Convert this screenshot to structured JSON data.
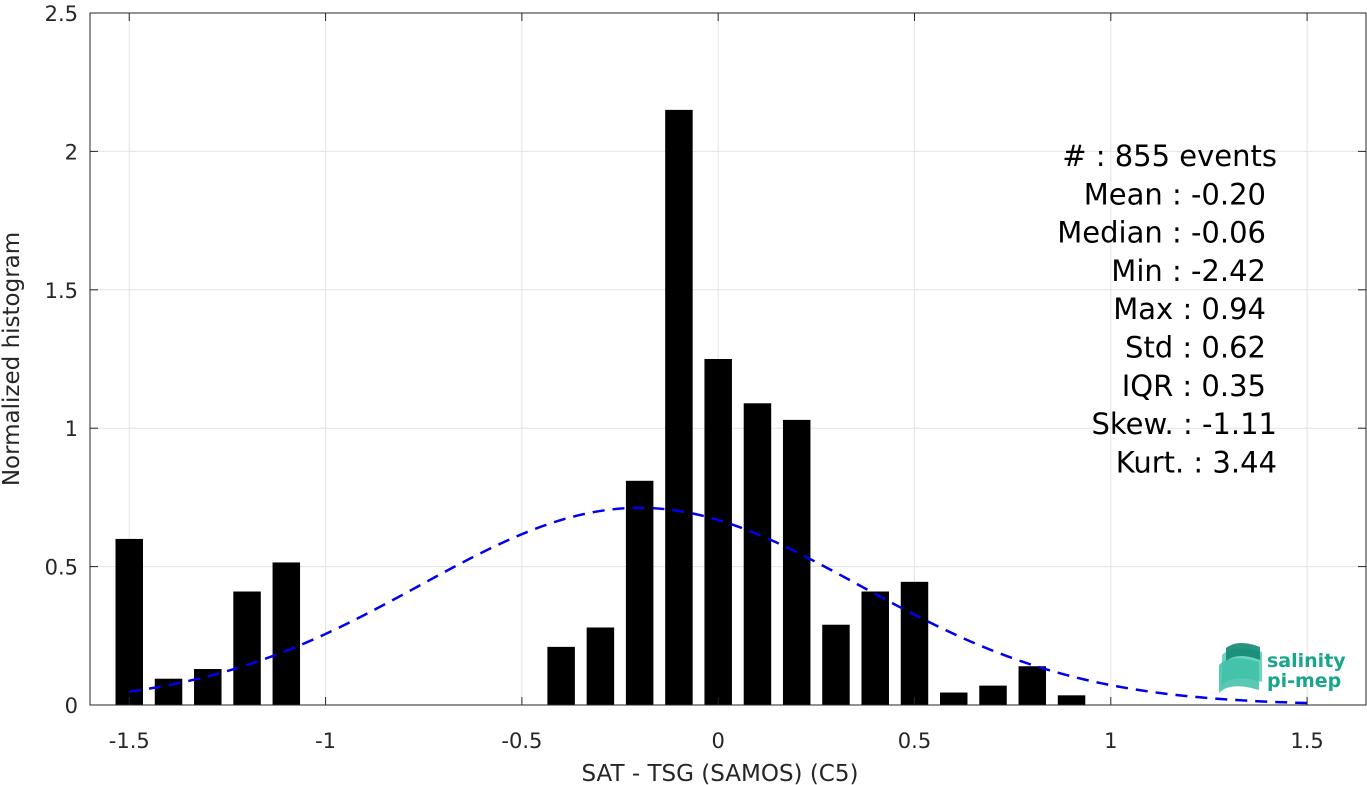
{
  "chart_data": {
    "type": "bar",
    "xlabel": "SAT - TSG (SAMOS) (C5)",
    "ylabel": "Normalized histogram",
    "xlim": [
      -1.6,
      1.65
    ],
    "ylim": [
      0,
      2.5
    ],
    "xticks": [
      -1.5,
      -1,
      -0.5,
      0,
      0.5,
      1,
      1.5
    ],
    "xtick_labels": [
      "-1.5",
      "-1",
      "-0.5",
      "0",
      "0.5",
      "1",
      "1.5"
    ],
    "yticks": [
      0,
      0.5,
      1,
      1.5,
      2,
      2.5
    ],
    "ytick_labels": [
      "0",
      "0.5",
      "1",
      "1.5",
      "2",
      "2.5"
    ],
    "grid": true,
    "bar_width": 0.07,
    "bars": {
      "x": [
        -1.5,
        -1.4,
        -1.3,
        -1.2,
        -1.1,
        -0.4,
        -0.3,
        -0.2,
        -0.1,
        0.0,
        0.1,
        0.2,
        0.3,
        0.4,
        0.5,
        0.6,
        0.7,
        0.8,
        0.9
      ],
      "values": [
        0.6,
        0.095,
        0.13,
        0.41,
        0.515,
        0.21,
        0.28,
        0.81,
        2.15,
        1.25,
        1.09,
        1.03,
        0.29,
        0.41,
        0.445,
        0.045,
        0.07,
        0.14,
        0.035
      ],
      "color": "#000000"
    },
    "fit_curve": {
      "style": "dashed",
      "color": "#0000ee",
      "x_range": [
        -1.5,
        1.5
      ],
      "mean": -0.2,
      "std": 0.56
    },
    "stats_text": [
      "#  : 855 events",
      "Mean : -0.20",
      "Median : -0.06",
      "Min : -2.42",
      "Max : 0.94",
      "Std : 0.62",
      "IQR : 0.35",
      "Skew. : -1.11",
      "Kurt. : 3.44"
    ],
    "logo": {
      "line1": "salinity",
      "line2": "pi-mep",
      "color": "#1aa58c"
    }
  }
}
